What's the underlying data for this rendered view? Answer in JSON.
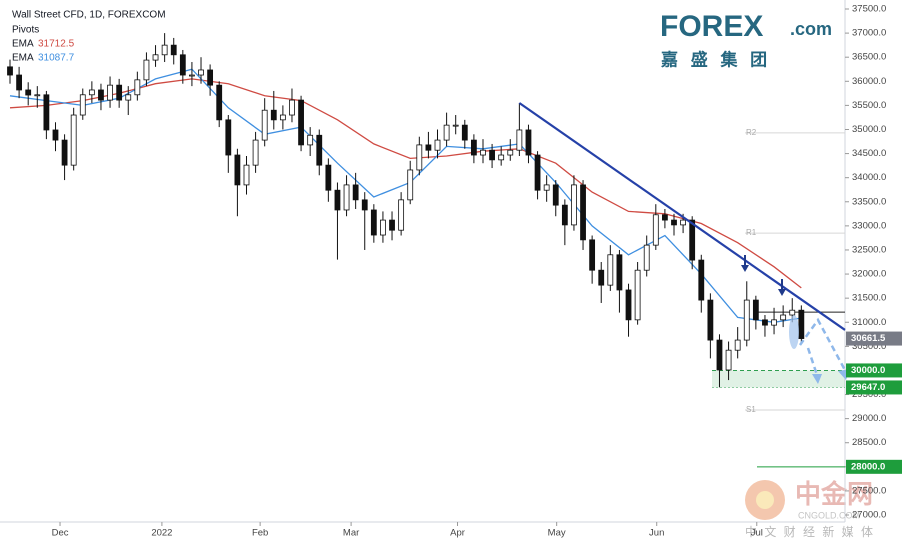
{
  "chart_data": {
    "type": "candlestick",
    "title": "Wall Street CFD, 1D, FOREXCOM",
    "indicator": "Pivots",
    "x": [
      0,
      1,
      2,
      3,
      4,
      5,
      6,
      7,
      8,
      9,
      10,
      11,
      12,
      13,
      14,
      15,
      16,
      17,
      18,
      19,
      20,
      21,
      22,
      23,
      24,
      25,
      26,
      27,
      28,
      29,
      30,
      31,
      32,
      33,
      34,
      35,
      36,
      37,
      38,
      39,
      40,
      41,
      42,
      43,
      44,
      45,
      46,
      47,
      48,
      49,
      50,
      51,
      52,
      53,
      54,
      55,
      56,
      57,
      58,
      59,
      60,
      61,
      62,
      63,
      64,
      65,
      66,
      67,
      68,
      69,
      70,
      71,
      72,
      73,
      74,
      75,
      76,
      77,
      78,
      79,
      80,
      81,
      82,
      83,
      84,
      85,
      86,
      87
    ],
    "open": [
      36300,
      36130,
      35820,
      35715,
      35720,
      34990,
      34780,
      34260,
      35300,
      35720,
      35820,
      35610,
      35920,
      35610,
      35720,
      36030,
      36440,
      36550,
      36750,
      36550,
      36130,
      36130,
      36235,
      35920,
      35200,
      34470,
      33850,
      34260,
      34780,
      35400,
      35200,
      35300,
      35610,
      34680,
      34880,
      34260,
      33740,
      33330,
      33850,
      33540,
      33330,
      32810,
      33120,
      32910,
      33540,
      34160,
      34680,
      34570,
      34780,
      35090,
      35090,
      34780,
      34470,
      34570,
      34370,
      34470,
      34570,
      34990,
      34470,
      33740,
      33850,
      33430,
      33020,
      33850,
      32710,
      32080,
      31770,
      32400,
      31670,
      31050,
      32080,
      32600,
      33230,
      33120,
      33020,
      33120,
      32290,
      31460,
      30630,
      30010,
      30420,
      30630,
      31460,
      31050,
      30940,
      31050,
      31150,
      31250
    ],
    "high": [
      36450,
      36300,
      35980,
      35900,
      35800,
      35150,
      34900,
      35450,
      35850,
      36000,
      35950,
      36100,
      36050,
      35900,
      36200,
      36600,
      36750,
      37000,
      36900,
      36650,
      36400,
      36500,
      36350,
      36000,
      35300,
      34600,
      34450,
      34950,
      35650,
      35800,
      35500,
      35850,
      35700,
      35050,
      35000,
      34400,
      33900,
      34050,
      34100,
      33700,
      33450,
      33300,
      33300,
      33700,
      34350,
      34850,
      34950,
      35000,
      35350,
      35300,
      35200,
      34900,
      34800,
      34700,
      34650,
      34800,
      35550,
      35100,
      34550,
      34050,
      33950,
      33550,
      34050,
      33950,
      32800,
      32250,
      32600,
      32500,
      31800,
      32250,
      32800,
      33450,
      33350,
      33250,
      33250,
      33200,
      32400,
      31600,
      30750,
      30600,
      30900,
      31850,
      31550,
      31150,
      31300,
      31350,
      31500,
      31350
    ],
    "low": [
      35950,
      35650,
      35500,
      35450,
      34800,
      34550,
      33950,
      34150,
      35200,
      35550,
      35400,
      35450,
      35450,
      35300,
      35600,
      35900,
      36300,
      36400,
      36350,
      35950,
      35900,
      35950,
      35700,
      35050,
      34100,
      33200,
      33650,
      34100,
      34650,
      35000,
      35000,
      35150,
      34550,
      34450,
      34050,
      33500,
      32300,
      33200,
      33350,
      32500,
      32650,
      32650,
      32700,
      32800,
      33450,
      34050,
      34400,
      34400,
      34650,
      34900,
      34600,
      34300,
      34300,
      34200,
      34250,
      34350,
      34450,
      34300,
      33550,
      33500,
      33200,
      32600,
      32900,
      32500,
      31800,
      31400,
      31650,
      31200,
      30700,
      30950,
      31950,
      32500,
      32950,
      32800,
      32850,
      32100,
      31200,
      30250,
      29650,
      29800,
      30250,
      30500,
      30850,
      30700,
      30750,
      30900,
      31000,
      30550
    ],
    "close": [
      36130,
      35820,
      35715,
      35720,
      34990,
      34780,
      34260,
      35300,
      35720,
      35820,
      35610,
      35920,
      35610,
      35720,
      36030,
      36440,
      36550,
      36750,
      36550,
      36130,
      36130,
      36235,
      35920,
      35200,
      34470,
      33850,
      34260,
      34780,
      35400,
      35200,
      35300,
      35610,
      34680,
      34880,
      34260,
      33740,
      33330,
      33850,
      33540,
      33330,
      32810,
      33120,
      32910,
      33540,
      34160,
      34680,
      34570,
      34780,
      35090,
      35090,
      34780,
      34470,
      34570,
      34370,
      34470,
      34570,
      34990,
      34470,
      33740,
      33850,
      33430,
      33020,
      33850,
      32710,
      32080,
      31770,
      32400,
      31670,
      31050,
      32080,
      32600,
      33230,
      33120,
      33020,
      33120,
      32290,
      31460,
      30630,
      30010,
      30420,
      30630,
      31460,
      31050,
      30940,
      31050,
      31150,
      31250,
      30661.5
    ],
    "series": [
      {
        "name": "EMA",
        "color": "#cf4b43",
        "x": [
          0,
          4,
          8,
          12,
          16,
          20,
          24,
          28,
          32,
          36,
          40,
          44,
          48,
          52,
          56,
          60,
          64,
          68,
          72,
          76,
          80,
          84,
          87
        ],
        "values": [
          35450,
          35500,
          35600,
          35750,
          35950,
          36050,
          35950,
          35700,
          35600,
          35200,
          34700,
          34400,
          34450,
          34550,
          34600,
          34300,
          33700,
          33300,
          33250,
          33050,
          32650,
          32150,
          31712.5
        ]
      },
      {
        "name": "EMA",
        "color": "#3f8fe0",
        "x": [
          0,
          4,
          8,
          12,
          16,
          20,
          24,
          28,
          32,
          36,
          40,
          44,
          48,
          52,
          56,
          60,
          64,
          68,
          72,
          76,
          80,
          84,
          87
        ],
        "values": [
          35700,
          35600,
          35500,
          35650,
          36050,
          36250,
          35450,
          34900,
          35050,
          34300,
          33600,
          33900,
          34650,
          34600,
          34700,
          33900,
          33000,
          32400,
          32800,
          32000,
          31100,
          31000,
          31087.7
        ]
      }
    ],
    "xlim": [
      -1.1,
      91.8
    ],
    "xticks": [
      {
        "value": 5.5,
        "label": "Dec"
      },
      {
        "value": 16.7,
        "label": "2022"
      },
      {
        "value": 27.5,
        "label": "Feb"
      },
      {
        "value": 37.5,
        "label": "Mar"
      },
      {
        "value": 49.2,
        "label": "Apr"
      },
      {
        "value": 60.1,
        "label": "May"
      },
      {
        "value": 71.1,
        "label": "Jun"
      },
      {
        "value": 82.1,
        "label": "Jul"
      }
    ],
    "ylim": [
      26855,
      37687
    ],
    "yticks": [
      {
        "value": 27000,
        "label": "27000.0"
      },
      {
        "value": 27500,
        "label": "27500.0"
      },
      {
        "value": 28000,
        "label": "28000.0"
      },
      {
        "value": 28500,
        "label": "28500.0"
      },
      {
        "value": 29000,
        "label": "29000.0"
      },
      {
        "value": 29500,
        "label": "29500.0"
      },
      {
        "value": 30000,
        "label": "30000.0"
      },
      {
        "value": 30500,
        "label": "30500.0"
      },
      {
        "value": 31000,
        "label": "31000.0"
      },
      {
        "value": 31500,
        "label": "31500.0"
      },
      {
        "value": 32000,
        "label": "32000.0"
      },
      {
        "value": 32500,
        "label": "32500.0"
      },
      {
        "value": 33000,
        "label": "33000.0"
      },
      {
        "value": 33500,
        "label": "33500.0"
      },
      {
        "value": 34000,
        "label": "34000.0"
      },
      {
        "value": 34500,
        "label": "34500.0"
      },
      {
        "value": 35000,
        "label": "35000.0"
      },
      {
        "value": 35500,
        "label": "35500.0"
      },
      {
        "value": 36000,
        "label": "36000.0"
      },
      {
        "value": 36500,
        "label": "36500.0"
      },
      {
        "value": 37000,
        "label": "37000.0"
      },
      {
        "value": 37500,
        "label": "37500.0"
      }
    ],
    "pivots": [
      {
        "label": "R2",
        "value": 34930
      },
      {
        "label": "R1",
        "value": 32850
      },
      {
        "label": "S1",
        "value": 29180
      }
    ],
    "resistance_line": {
      "value": 31210
    },
    "trendline": {
      "x": [
        56,
        91.8
      ],
      "y": [
        35550,
        30840
      ]
    },
    "support_zone": {
      "low": 29647,
      "high": 30000,
      "color": "#2e9e4f"
    },
    "levels": [
      {
        "value": 30661.5,
        "label": "30661.5",
        "color": "#787b86"
      },
      {
        "value": 30000,
        "label": "30000.0",
        "color": "#1e9d3c"
      },
      {
        "value": 29647,
        "label": "29647.0",
        "color": "#1e9d3c"
      },
      {
        "value": 28000,
        "label": "28000.0",
        "color": "#1e9d3c"
      }
    ]
  },
  "watermark": {
    "brand": "FOREX",
    "brand_suffix": ".com",
    "brand_cn": "嘉 盛 集 团",
    "site_cn": "中金网",
    "site_en": "CNGOLD.COM",
    "site_tagline": "中 文 财 经 新 媒 体"
  }
}
